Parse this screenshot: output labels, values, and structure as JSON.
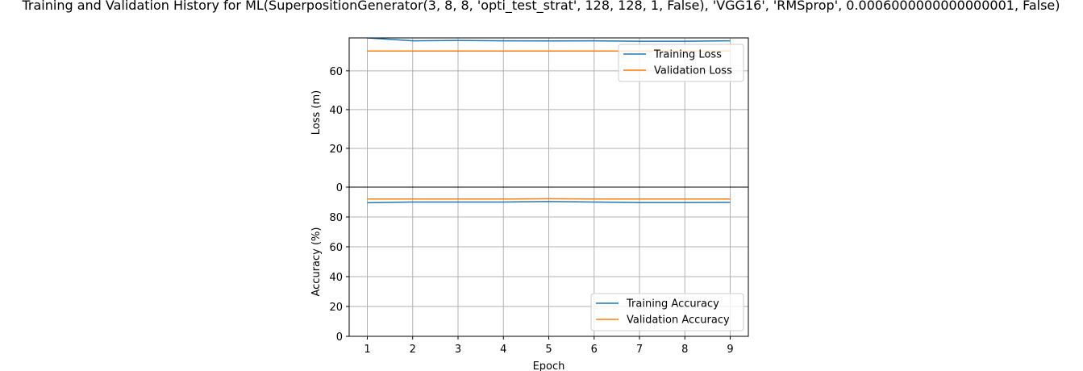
{
  "figure_title": "Training and Validation History for ML(SuperpositionGenerator(3, 8, 8, 'opti_test_strat', 128, 128, 1, False), 'VGG16', 'RMSprop', 0.0006000000000000001, False)",
  "chart_data": [
    {
      "type": "line",
      "x": [
        1,
        2,
        3,
        4,
        5,
        6,
        7,
        8,
        9
      ],
      "series": [
        {
          "name": "Training Loss",
          "color": "#1f77b4",
          "values": [
            77.0,
            75.5,
            75.7,
            75.5,
            75.4,
            75.5,
            75.3,
            75.3,
            75.5
          ]
        },
        {
          "name": "Validation Loss",
          "color": "#ff7f0e",
          "values": [
            70.2,
            70.2,
            70.2,
            70.2,
            70.2,
            70.2,
            70.2,
            70.2,
            70.2
          ]
        }
      ],
      "xlabel": "",
      "ylabel": "Loss (m)",
      "xlim": [
        0.6,
        9.4
      ],
      "ylim": [
        0,
        77
      ],
      "yticks": [
        0,
        20,
        40,
        60
      ],
      "grid": true,
      "legend": "upper right"
    },
    {
      "type": "line",
      "x": [
        1,
        2,
        3,
        4,
        5,
        6,
        7,
        8,
        9
      ],
      "series": [
        {
          "name": "Training Accuracy",
          "color": "#1f77b4",
          "values": [
            89.5,
            90.0,
            90.0,
            90.0,
            90.3,
            90.0,
            89.7,
            89.7,
            89.8
          ]
        },
        {
          "name": "Validation Accuracy",
          "color": "#ff7f0e",
          "values": [
            92.0,
            92.0,
            92.0,
            92.0,
            92.2,
            92.0,
            92.0,
            92.0,
            92.0
          ]
        }
      ],
      "xlabel": "Epoch",
      "ylabel": "Accuracy (%)",
      "xlim": [
        0.6,
        9.4
      ],
      "ylim": [
        0,
        100
      ],
      "xticks": [
        1,
        2,
        3,
        4,
        5,
        6,
        7,
        8,
        9
      ],
      "yticks": [
        0,
        20,
        40,
        60,
        80
      ],
      "grid": true,
      "legend": "lower right"
    }
  ]
}
